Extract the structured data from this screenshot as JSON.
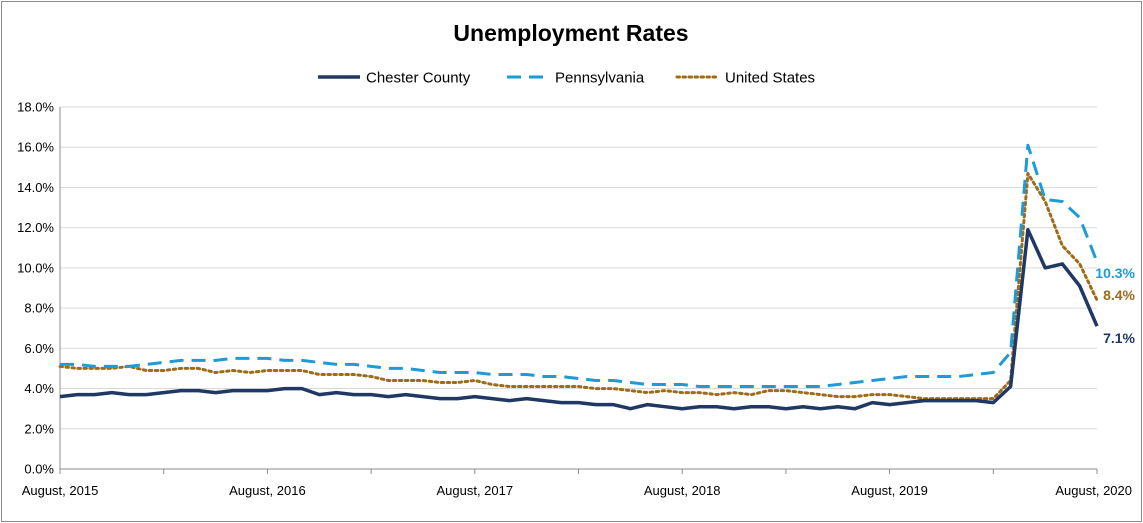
{
  "chart_data": {
    "type": "line",
    "title": "Unemployment Rates",
    "xlabel": "",
    "ylabel": "",
    "ylim": [
      0,
      18
    ],
    "y_ticks": [
      "0.0%",
      "2.0%",
      "4.0%",
      "6.0%",
      "8.0%",
      "10.0%",
      "12.0%",
      "14.0%",
      "16.0%",
      "18.0%"
    ],
    "x_tick_labels": [
      {
        "index": 0,
        "label": "August, 2015"
      },
      {
        "index": 12,
        "label": "August, 2016"
      },
      {
        "index": 24,
        "label": "August, 2017"
      },
      {
        "index": 36,
        "label": "August, 2018"
      },
      {
        "index": 48,
        "label": "August, 2019"
      },
      {
        "index": 60,
        "label": "August, 2020"
      }
    ],
    "grid": "horizontal",
    "legend_position": "top",
    "series": [
      {
        "name": "Chester County",
        "color": "#1f3864",
        "style": "solid",
        "end_label": "7.1%",
        "values": [
          3.6,
          3.7,
          3.7,
          3.8,
          3.7,
          3.7,
          3.8,
          3.9,
          3.9,
          3.8,
          3.9,
          3.9,
          3.9,
          4.0,
          4.0,
          3.7,
          3.8,
          3.7,
          3.7,
          3.6,
          3.7,
          3.6,
          3.5,
          3.5,
          3.6,
          3.5,
          3.4,
          3.5,
          3.4,
          3.3,
          3.3,
          3.2,
          3.2,
          3.0,
          3.2,
          3.1,
          3.0,
          3.1,
          3.1,
          3.0,
          3.1,
          3.1,
          3.0,
          3.1,
          3.0,
          3.1,
          3.0,
          3.3,
          3.2,
          3.3,
          3.4,
          3.4,
          3.4,
          3.4,
          3.3,
          4.1,
          11.9,
          10.0,
          10.2,
          9.1,
          7.1
        ]
      },
      {
        "name": "Pennsylvania",
        "color": "#1e9bd7",
        "style": "dashed",
        "end_label": "10.3%",
        "values": [
          5.2,
          5.2,
          5.1,
          5.1,
          5.1,
          5.2,
          5.3,
          5.4,
          5.4,
          5.4,
          5.5,
          5.5,
          5.5,
          5.4,
          5.4,
          5.3,
          5.2,
          5.2,
          5.1,
          5.0,
          5.0,
          4.9,
          4.8,
          4.8,
          4.8,
          4.7,
          4.7,
          4.7,
          4.6,
          4.6,
          4.5,
          4.4,
          4.4,
          4.3,
          4.2,
          4.2,
          4.2,
          4.1,
          4.1,
          4.1,
          4.1,
          4.1,
          4.1,
          4.1,
          4.1,
          4.2,
          4.3,
          4.4,
          4.5,
          4.6,
          4.6,
          4.6,
          4.6,
          4.7,
          4.8,
          5.8,
          16.1,
          13.4,
          13.3,
          12.5,
          10.3
        ]
      },
      {
        "name": "United States",
        "color": "#9c6c1a",
        "style": "dotted",
        "end_label": "8.4%",
        "values": [
          5.1,
          5.0,
          5.0,
          5.0,
          5.1,
          4.9,
          4.9,
          5.0,
          5.0,
          4.8,
          4.9,
          4.8,
          4.9,
          4.9,
          4.9,
          4.7,
          4.7,
          4.7,
          4.6,
          4.4,
          4.4,
          4.4,
          4.3,
          4.3,
          4.4,
          4.2,
          4.1,
          4.1,
          4.1,
          4.1,
          4.1,
          4.0,
          4.0,
          3.9,
          3.8,
          3.9,
          3.8,
          3.8,
          3.7,
          3.8,
          3.7,
          3.9,
          3.9,
          3.8,
          3.7,
          3.6,
          3.6,
          3.7,
          3.7,
          3.6,
          3.5,
          3.5,
          3.5,
          3.5,
          3.5,
          4.4,
          14.7,
          13.3,
          11.1,
          10.2,
          8.4
        ]
      }
    ]
  }
}
